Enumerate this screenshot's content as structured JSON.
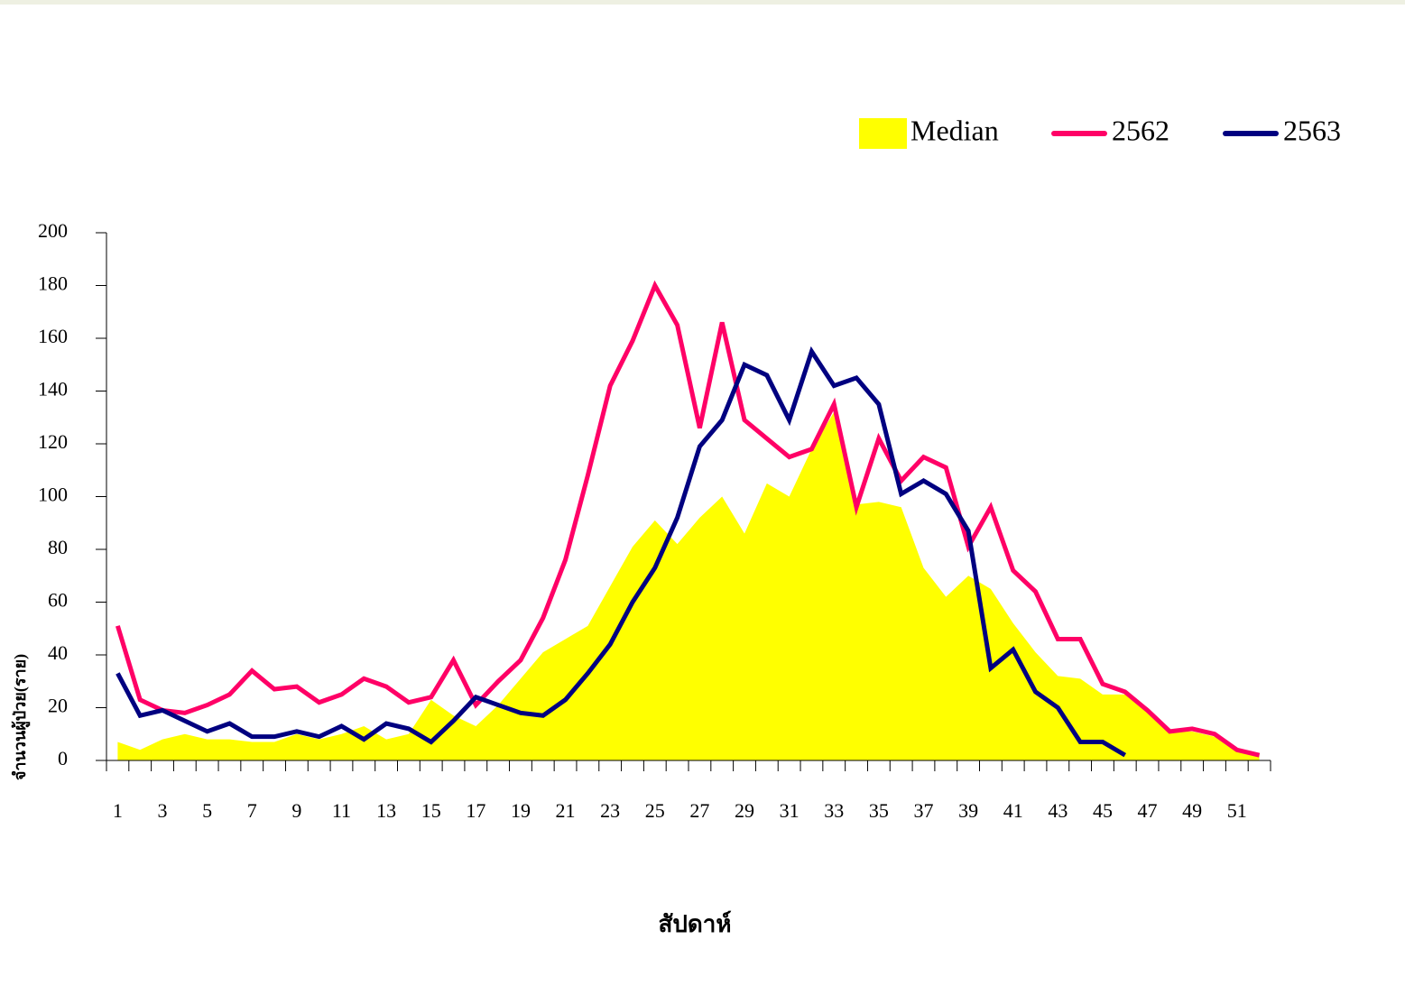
{
  "chart_data": {
    "type": "line",
    "x_label": "สัปดาห์",
    "y_label": "จำนวนผู้ป่วย(ราย)",
    "categories": [
      1,
      null,
      3,
      null,
      5,
      null,
      7,
      null,
      9,
      null,
      11,
      null,
      13,
      null,
      15,
      null,
      17,
      null,
      19,
      null,
      21,
      null,
      23,
      null,
      25,
      null,
      27,
      null,
      29,
      null,
      31,
      null,
      33,
      null,
      35,
      null,
      37,
      null,
      39,
      null,
      41,
      null,
      43,
      null,
      45,
      null,
      47,
      null,
      49,
      null,
      51,
      null
    ],
    "ylim": [
      0,
      200
    ],
    "yticks": [
      0,
      20,
      40,
      60,
      80,
      100,
      120,
      140,
      160,
      180,
      200
    ],
    "grid": false,
    "legend": "top-right",
    "series": [
      {
        "name": "Median",
        "type": "area",
        "color": "#ffff00",
        "values": [
          7,
          4,
          8,
          10,
          8,
          8,
          7,
          7,
          10,
          8,
          10,
          13,
          8,
          10,
          23,
          17,
          13,
          21,
          31,
          41,
          46,
          51,
          66,
          81,
          91,
          82,
          92,
          100,
          86,
          105,
          100,
          118,
          132,
          97,
          98,
          96,
          73,
          62,
          70,
          65,
          52,
          41,
          32,
          31,
          25,
          25,
          18,
          11,
          11,
          9,
          4,
          2
        ]
      },
      {
        "name": "2562",
        "type": "line",
        "color": "#ff0066",
        "values": [
          51,
          23,
          19,
          18,
          21,
          25,
          34,
          27,
          28,
          22,
          25,
          31,
          28,
          22,
          24,
          38,
          21,
          30,
          38,
          54,
          76,
          108,
          142,
          159,
          180,
          165,
          126,
          166,
          129,
          122,
          115,
          118,
          135,
          96,
          122,
          106,
          115,
          111,
          81,
          96,
          72,
          64,
          46,
          46,
          29,
          26,
          19,
          11,
          12,
          10,
          4,
          2
        ]
      },
      {
        "name": "2563",
        "type": "line",
        "color": "#000080",
        "values": [
          33,
          17,
          19,
          15,
          11,
          14,
          9,
          9,
          11,
          9,
          13,
          8,
          14,
          12,
          7,
          15,
          24,
          21,
          18,
          17,
          23,
          33,
          44,
          60,
          73,
          92,
          119,
          129,
          150,
          146,
          129,
          155,
          142,
          145,
          135,
          101,
          106,
          101,
          87,
          35,
          42,
          26,
          20,
          7,
          7,
          2,
          null,
          null,
          null,
          null,
          null,
          null
        ]
      }
    ]
  }
}
